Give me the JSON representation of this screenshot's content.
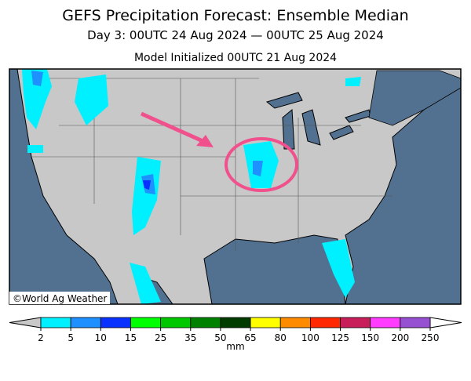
{
  "header": {
    "title": "GEFS Precipitation Forecast: Ensemble Median",
    "subtitle": "Day 3: 00UTC 24 Aug 2024 — 00UTC 25 Aug 2024",
    "init": "Model Initialized 00UTC 21 Aug 2024"
  },
  "map": {
    "credit": "©World Ag Weather"
  },
  "colorbar": {
    "levels": [
      2,
      5,
      10,
      15,
      25,
      35,
      50,
      65,
      80,
      100,
      125,
      150,
      200,
      250
    ],
    "colors": [
      "#00f0ff",
      "#1e90ff",
      "#0a32ff",
      "#00ff00",
      "#00c800",
      "#008200",
      "#003c00",
      "#ffff00",
      "#ff8c00",
      "#ff2800",
      "#c81e5a",
      "#ff3cff",
      "#9650d2"
    ],
    "under_color": "#c8c8c8",
    "over_color": "#ffffff",
    "unit": "mm"
  }
}
